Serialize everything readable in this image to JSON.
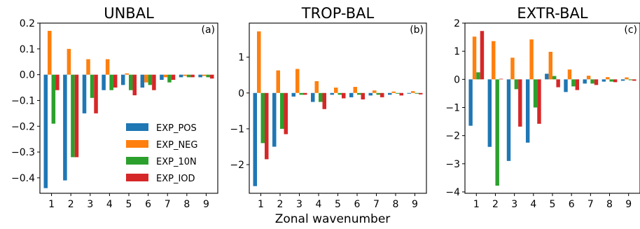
{
  "figure": {
    "xlabel": "Zonal wavenumber"
  },
  "legend": {
    "entries": [
      {
        "name": "EXP_POS",
        "color": "#1f77b4"
      },
      {
        "name": "EXP_NEG",
        "color": "#ff7f0e"
      },
      {
        "name": "EXP_10N",
        "color": "#2ca02c"
      },
      {
        "name": "EXP_IOD",
        "color": "#d62728"
      }
    ],
    "placement": "lower-right of panel (a)"
  },
  "chart_data": [
    {
      "type": "bar",
      "title": "UNBAL",
      "panel_label": "(a)",
      "categories": [
        "1",
        "2",
        "3",
        "4",
        "5",
        "6",
        "7",
        "8",
        "9"
      ],
      "ylim": [
        -0.46,
        0.2
      ],
      "yticks": [
        0.2,
        0.1,
        0.0,
        -0.1,
        -0.2,
        -0.3,
        -0.4
      ],
      "ytick_labels": [
        "0.2",
        "0.1",
        "0.0",
        "−0.1",
        "−0.2",
        "−0.3",
        "−0.4"
      ],
      "series": [
        {
          "name": "EXP_POS",
          "values": [
            -0.44,
            -0.41,
            -0.15,
            -0.06,
            -0.04,
            -0.05,
            -0.02,
            -0.01,
            -0.01
          ]
        },
        {
          "name": "EXP_NEG",
          "values": [
            0.17,
            0.1,
            0.06,
            0.06,
            0.005,
            -0.03,
            -0.01,
            -0.005,
            -0.005
          ]
        },
        {
          "name": "EXP_10N",
          "values": [
            -0.19,
            -0.32,
            -0.09,
            -0.06,
            -0.06,
            -0.04,
            -0.03,
            -0.01,
            -0.01
          ]
        },
        {
          "name": "EXP_IOD",
          "values": [
            -0.06,
            -0.32,
            -0.15,
            -0.05,
            -0.08,
            -0.06,
            -0.02,
            -0.01,
            -0.015
          ]
        }
      ]
    },
    {
      "type": "bar",
      "title": "TROP-BAL",
      "panel_label": "(b)",
      "categories": [
        "1",
        "2",
        "3",
        "4",
        "5",
        "6",
        "7",
        "8",
        "9"
      ],
      "ylim": [
        -2.8,
        1.95
      ],
      "yticks": [
        1,
        0,
        -1,
        -2
      ],
      "ytick_labels": [
        "1",
        "0",
        "−1",
        "−2"
      ],
      "series": [
        {
          "name": "EXP_POS",
          "values": [
            -2.6,
            -1.5,
            -0.1,
            -0.25,
            -0.05,
            -0.12,
            -0.07,
            -0.05,
            -0.02
          ]
        },
        {
          "name": "EXP_NEG",
          "values": [
            1.72,
            0.63,
            0.67,
            0.33,
            0.15,
            0.17,
            0.07,
            0.04,
            0.05
          ]
        },
        {
          "name": "EXP_10N",
          "values": [
            -1.4,
            -1.0,
            -0.05,
            -0.25,
            -0.05,
            -0.05,
            -0.05,
            -0.02,
            -0.02
          ]
        },
        {
          "name": "EXP_IOD",
          "values": [
            -1.85,
            -1.15,
            -0.05,
            -0.45,
            -0.15,
            -0.18,
            -0.12,
            -0.07,
            -0.04
          ]
        }
      ]
    },
    {
      "type": "bar",
      "title": "EXTR-BAL",
      "panel_label": "(c)",
      "categories": [
        "1",
        "2",
        "3",
        "4",
        "5",
        "6",
        "7",
        "8",
        "9"
      ],
      "ylim": [
        -4.05,
        2.0
      ],
      "yticks": [
        2,
        1,
        0,
        -1,
        -2,
        -3,
        -4
      ],
      "ytick_labels": [
        "2",
        "1",
        "0",
        "−1",
        "−2",
        "−3",
        "−4"
      ],
      "series": [
        {
          "name": "EXP_POS",
          "values": [
            -1.65,
            -2.4,
            -2.9,
            -2.25,
            0.2,
            -0.45,
            -0.15,
            -0.08,
            -0.05
          ]
        },
        {
          "name": "EXP_NEG",
          "values": [
            1.52,
            1.36,
            0.77,
            1.42,
            0.98,
            0.35,
            0.13,
            0.08,
            0.07
          ]
        },
        {
          "name": "EXP_10N",
          "values": [
            0.25,
            -3.78,
            -0.35,
            -1.0,
            0.12,
            -0.25,
            -0.15,
            -0.08,
            -0.03
          ]
        },
        {
          "name": "EXP_IOD",
          "values": [
            1.72,
            0.02,
            -1.68,
            -1.58,
            -0.28,
            -0.38,
            -0.2,
            -0.1,
            -0.05
          ]
        }
      ]
    }
  ]
}
